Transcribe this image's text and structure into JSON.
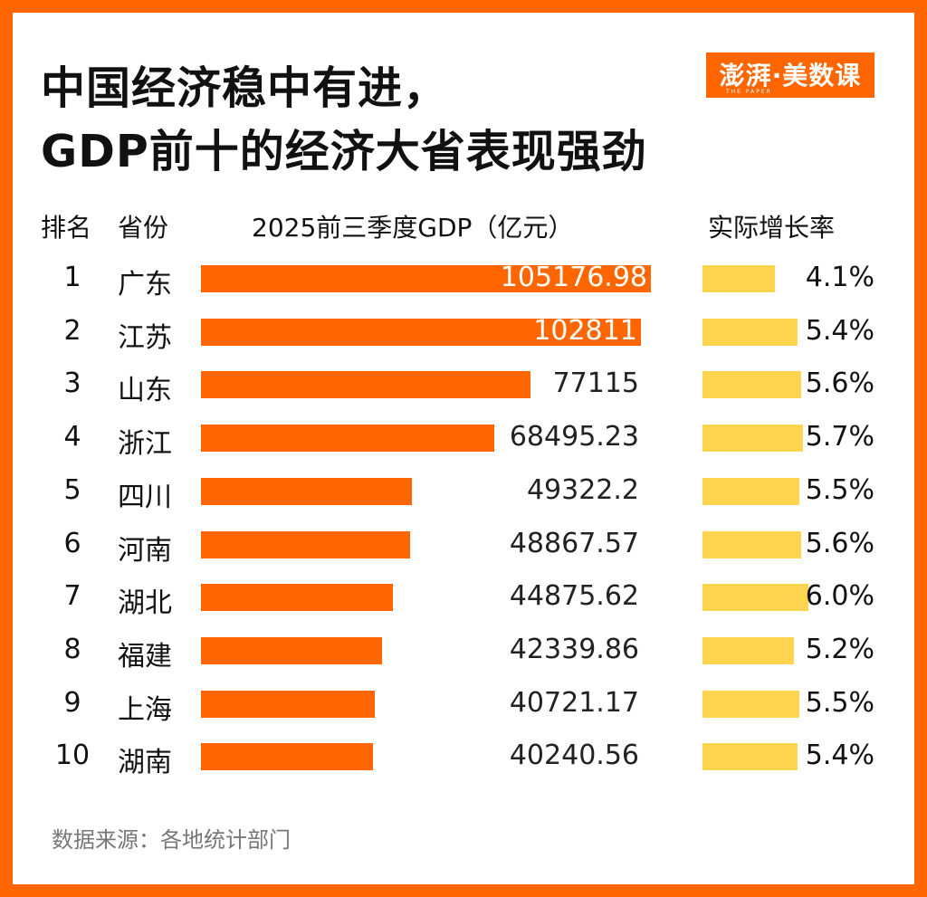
{
  "title_line1": "中国经济稳中有进，",
  "title_line2": "GDP前十的经济大省表现强劲",
  "logo": {
    "text": "澎湃·美数课",
    "sub": "THE PAPER"
  },
  "colors": {
    "frame": "#ff6600",
    "gdp_bar": "#ff6600",
    "growth_bar": "#ffd44f"
  },
  "chart_data": {
    "type": "bar",
    "headers": {
      "rank": "排名",
      "province": "省份",
      "gdp": "2025前三季度GDP（亿元）",
      "growth": "实际增长率"
    },
    "ranks": [
      "1",
      "2",
      "3",
      "4",
      "5",
      "6",
      "7",
      "8",
      "9",
      "10"
    ],
    "categories": [
      "广东",
      "江苏",
      "山东",
      "浙江",
      "四川",
      "河南",
      "湖北",
      "福建",
      "上海",
      "湖南"
    ],
    "gdp_labels": [
      "105176.98",
      "102811",
      "77115",
      "68495.23",
      "49322.2",
      "48867.57",
      "44875.62",
      "42339.86",
      "40721.17",
      "40240.56"
    ],
    "gdp_values": [
      105176.98,
      102811,
      77115,
      68495.23,
      49322.2,
      48867.57,
      44875.62,
      42339.86,
      40721.17,
      40240.56
    ],
    "growth_labels": [
      "4.1%",
      "5.4%",
      "5.6%",
      "5.7%",
      "5.5%",
      "5.6%",
      "6.0%",
      "5.2%",
      "5.5%",
      "5.4%"
    ],
    "growth_values": [
      4.1,
      5.4,
      5.6,
      5.7,
      5.5,
      5.6,
      6.0,
      5.2,
      5.5,
      5.4
    ]
  },
  "footer": "数据来源：各地统计部门"
}
